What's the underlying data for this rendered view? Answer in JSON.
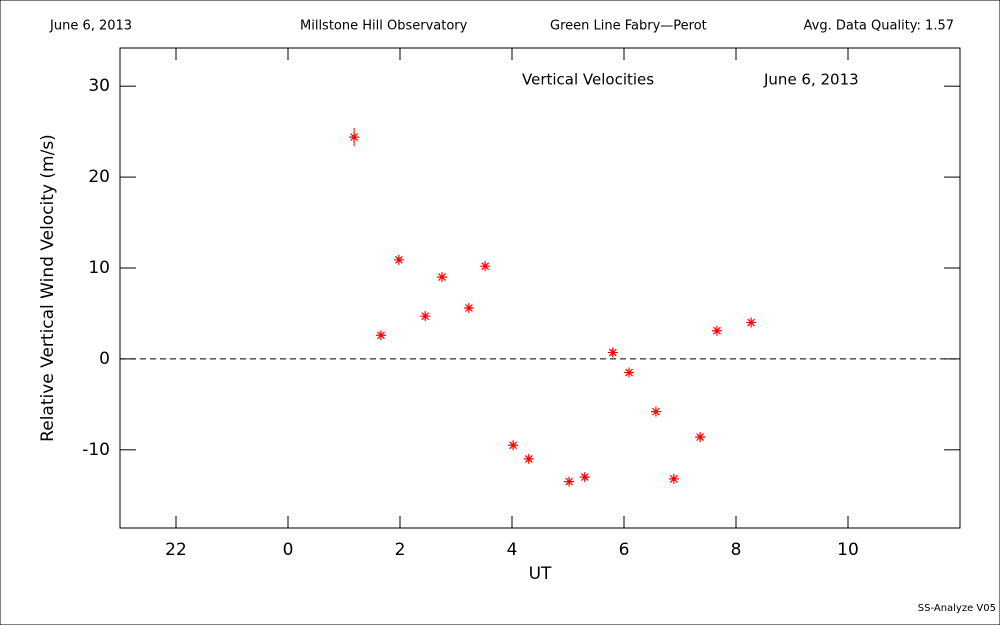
{
  "header": {
    "date": "June 6, 2013",
    "observatory": "Millstone Hill Observatory",
    "instrument": "Green Line Fabry—Perot",
    "quality": "Avg. Data Quality: 1.57"
  },
  "footer": "SS-Analyze V05",
  "chart_data": {
    "type": "scatter",
    "annotations": [
      "Vertical Velocities",
      "June 6, 2013"
    ],
    "x_label": "UT",
    "y_label": "Relative Vertical Wind Velocity (m/s)",
    "xlim": [
      -3,
      12
    ],
    "ylim": [
      -18.6,
      34.2
    ],
    "xticks": [
      {
        "value": -2,
        "label": "22"
      },
      0,
      2,
      4,
      6,
      8,
      10
    ],
    "yticks": [
      -10,
      0,
      10,
      20,
      30
    ],
    "zero_line": true,
    "series": [
      {
        "color": "#ff0000",
        "x": [
          1.18,
          1.66,
          1.98,
          2.45,
          2.75,
          3.23,
          3.52,
          4.02,
          4.3,
          5.02,
          5.3,
          5.8,
          6.09,
          6.57,
          6.89,
          7.36,
          7.66,
          8.27
        ],
        "values": [
          24.4,
          2.6,
          10.9,
          4.7,
          9.0,
          5.6,
          10.2,
          -9.5,
          -11.0,
          -13.5,
          -13.0,
          0.7,
          -1.5,
          -5.8,
          -13.2,
          -8.6,
          3.1,
          4.0
        ],
        "errors": [
          1.0,
          0.3,
          0.3,
          0.3,
          0.3,
          0.3,
          0.3,
          0.3,
          0.3,
          0.3,
          0.3,
          0.3,
          0.3,
          0.3,
          0.3,
          0.3,
          0.3,
          0.3
        ]
      }
    ]
  }
}
